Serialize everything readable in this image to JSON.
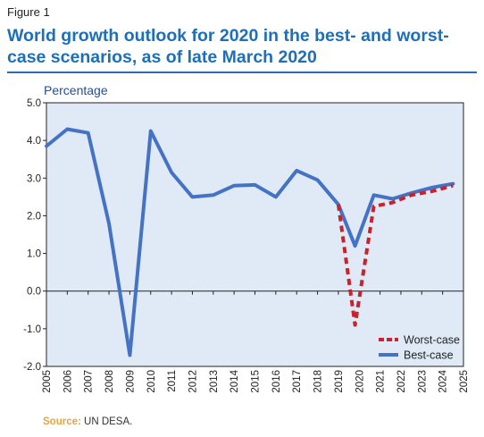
{
  "figure_label": "Figure 1",
  "title": "World growth outlook for 2020 in the best- and worst-case scenarios, as of late March 2020",
  "source": {
    "label": "Source:",
    "text": "UN DESA."
  },
  "chart_data": {
    "type": "line",
    "ylabel": "Percentage",
    "xlabel": "",
    "ylim": [
      -2.0,
      5.0
    ],
    "yticks": [
      "5.0",
      "4.0",
      "3.0",
      "2.0",
      "1.0",
      "0.0",
      "-1.0",
      "-2.0"
    ],
    "ytick_values": [
      5,
      4,
      3,
      2,
      1,
      0,
      -1,
      -2
    ],
    "xlim": [
      2005,
      2025
    ],
    "xticks": [
      "2005",
      "2006",
      "2007",
      "2008",
      "2009",
      "2010",
      "2011",
      "2012",
      "2013",
      "2014",
      "2015",
      "2016",
      "2017",
      "2018",
      "2019",
      "2020",
      "2021",
      "2022",
      "2023",
      "2024",
      "2025"
    ],
    "grid": false,
    "legend_position": "bottom-right",
    "series": [
      {
        "name": "Worst-case",
        "style": "dashed",
        "color": "#c8232c",
        "x": [
          2019,
          2019.8,
          2020.7,
          2021.6,
          2022.5,
          2023.5,
          2024.5
        ],
        "y": [
          2.3,
          -0.9,
          2.25,
          2.35,
          2.55,
          2.65,
          2.8
        ]
      },
      {
        "name": "Best-case",
        "style": "solid",
        "color": "#4472c4",
        "x": [
          2005,
          2006,
          2007,
          2008,
          2009,
          2010,
          2011,
          2012,
          2013,
          2014,
          2015,
          2016,
          2017,
          2018,
          2019,
          2019.8,
          2020.7,
          2021.6,
          2022.5,
          2023.5,
          2024.5
        ],
        "y": [
          3.85,
          4.3,
          4.2,
          1.8,
          -1.7,
          4.25,
          3.15,
          2.5,
          2.55,
          2.8,
          2.82,
          2.5,
          3.2,
          2.95,
          2.3,
          1.2,
          2.55,
          2.45,
          2.6,
          2.75,
          2.85
        ]
      }
    ]
  }
}
